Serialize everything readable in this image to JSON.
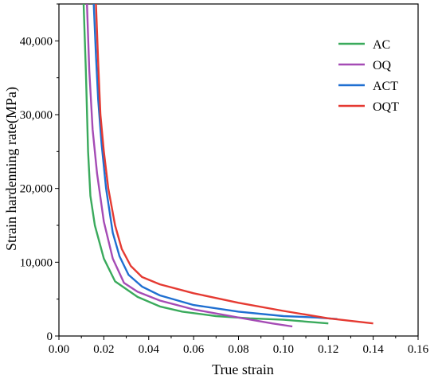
{
  "chart_data": {
    "type": "line",
    "xlabel": "True strain",
    "ylabel": "Strain hardenning rate(MPa)",
    "xlim": [
      0.0,
      0.16
    ],
    "ylim": [
      0,
      45000
    ],
    "x_ticks": [
      0.0,
      0.02,
      0.04,
      0.06,
      0.08,
      0.1,
      0.12,
      0.14,
      0.16
    ],
    "x_tick_labels": [
      "0.00",
      "0.02",
      "0.04",
      "0.06",
      "0.08",
      "0.10",
      "0.12",
      "0.14",
      "0.16"
    ],
    "y_ticks": [
      0,
      10000,
      20000,
      30000,
      40000
    ],
    "y_tick_labels": [
      "0",
      "10,000",
      "20,000",
      "30,000",
      "40,000"
    ],
    "grid": false,
    "legend_position": "top-right",
    "series": [
      {
        "name": "AC",
        "color": "#3aaa5c",
        "x": [
          0.011,
          0.012,
          0.013,
          0.014,
          0.016,
          0.02,
          0.025,
          0.035,
          0.045,
          0.055,
          0.07,
          0.085,
          0.1,
          0.12
        ],
        "y": [
          45000,
          36000,
          25000,
          19000,
          15000,
          10500,
          7400,
          5300,
          4000,
          3300,
          2700,
          2400,
          2200,
          1700
        ]
      },
      {
        "name": "OQ",
        "color": "#a54bb5",
        "x": [
          0.0125,
          0.0135,
          0.015,
          0.017,
          0.02,
          0.024,
          0.029,
          0.035,
          0.045,
          0.06,
          0.08,
          0.095,
          0.104
        ],
        "y": [
          45000,
          36000,
          28000,
          22000,
          15500,
          10500,
          7200,
          6000,
          4800,
          3600,
          2500,
          1700,
          1300
        ]
      },
      {
        "name": "ACT",
        "color": "#1f6fd1",
        "x": [
          0.0155,
          0.0165,
          0.0175,
          0.019,
          0.021,
          0.024,
          0.027,
          0.031,
          0.037,
          0.045,
          0.06,
          0.08,
          0.1,
          0.115,
          0.124
        ],
        "y": [
          45000,
          38000,
          32000,
          26000,
          20000,
          14000,
          10800,
          8300,
          6700,
          5500,
          4200,
          3300,
          2700,
          2500,
          2300
        ]
      },
      {
        "name": "OQT",
        "color": "#e53a32",
        "x": [
          0.0165,
          0.0175,
          0.0185,
          0.02,
          0.022,
          0.025,
          0.028,
          0.032,
          0.037,
          0.045,
          0.06,
          0.08,
          0.1,
          0.12,
          0.14
        ],
        "y": [
          45000,
          37000,
          30000,
          25000,
          20000,
          15000,
          11800,
          9500,
          8000,
          7000,
          5800,
          4500,
          3400,
          2400,
          1700
        ]
      }
    ]
  }
}
